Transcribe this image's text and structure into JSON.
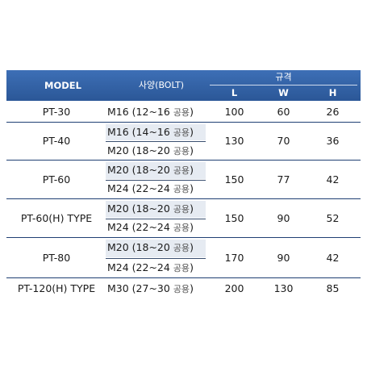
{
  "header": {
    "model": "MODEL",
    "spec": "사양(BOLT)",
    "dims": "규격",
    "l": "L",
    "w": "W",
    "h": "H"
  },
  "rows": [
    {
      "model": "PT-30",
      "specs": [
        {
          "main": "M16 (12~16 ",
          "ko": "공용",
          "end": ")"
        }
      ],
      "l": "100",
      "w": "60",
      "h": "26"
    },
    {
      "model": "PT-40",
      "specs": [
        {
          "main": "M16 (14~16 ",
          "ko": "공용",
          "end": ")"
        },
        {
          "main": "M20 (18~20 ",
          "ko": "공용",
          "end": ")"
        }
      ],
      "l": "130",
      "w": "70",
      "h": "36"
    },
    {
      "model": "PT-60",
      "specs": [
        {
          "main": "M20 (18~20 ",
          "ko": "공용",
          "end": ")"
        },
        {
          "main": "M24 (22~24 ",
          "ko": "공용",
          "end": ")"
        }
      ],
      "l": "150",
      "w": "77",
      "h": "42"
    },
    {
      "model": "PT-60(H) TYPE",
      "specs": [
        {
          "main": "M20 (18~20 ",
          "ko": "공용",
          "end": ")"
        },
        {
          "main": "M24 (22~24 ",
          "ko": "공용",
          "end": ")"
        }
      ],
      "l": "150",
      "w": "90",
      "h": "52"
    },
    {
      "model": "PT-80",
      "specs": [
        {
          "main": "M20 (18~20 ",
          "ko": "공용",
          "end": ")"
        },
        {
          "main": "M24 (22~24 ",
          "ko": "공용",
          "end": ")"
        }
      ],
      "l": "170",
      "w": "90",
      "h": "42"
    },
    {
      "model": "PT-120(H) TYPE",
      "specs": [
        {
          "main": "M30 (27~30 ",
          "ko": "공용",
          "end": ")"
        }
      ],
      "l": "200",
      "w": "130",
      "h": "85"
    }
  ]
}
